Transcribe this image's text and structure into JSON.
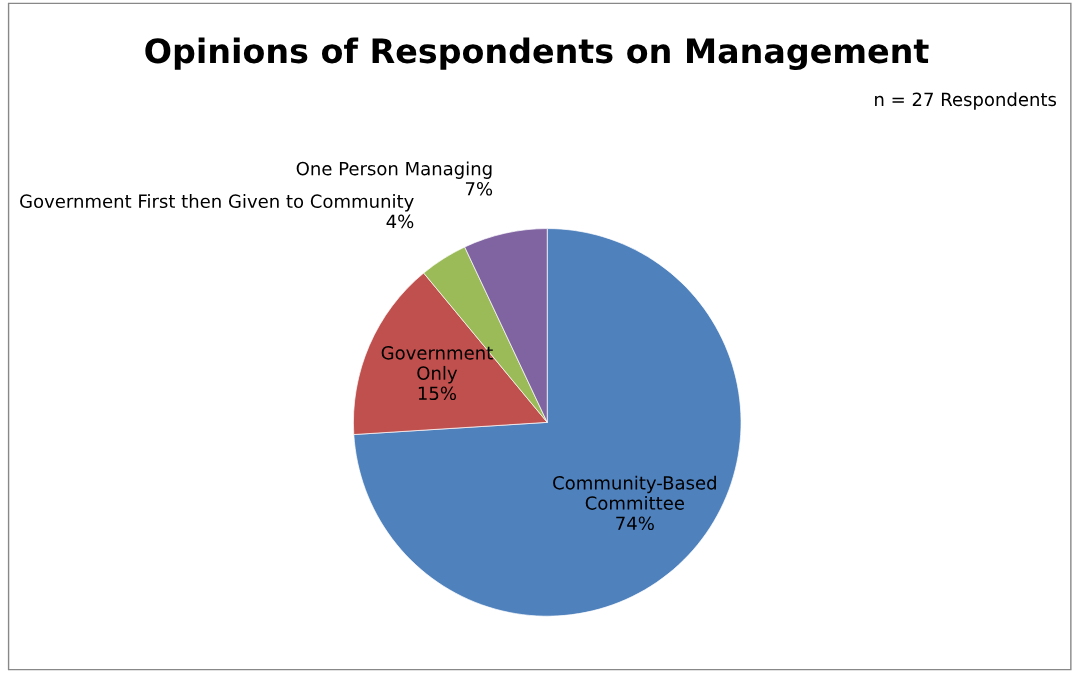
{
  "chart_data": {
    "type": "pie",
    "title": "Opinions of Respondents on Management",
    "categories": [
      "Community-Based Committee",
      "Government Only",
      "Government First then Given to Community",
      "One Person Managing"
    ],
    "values": [
      74,
      15,
      4,
      7
    ],
    "value_labels": [
      "74%",
      "15%",
      "4%",
      "7%"
    ],
    "colors": [
      "#4f81bd",
      "#c0504d",
      "#9bbb59",
      "#8064a2"
    ],
    "annotations": [
      "n = 27 Respondents"
    ]
  }
}
